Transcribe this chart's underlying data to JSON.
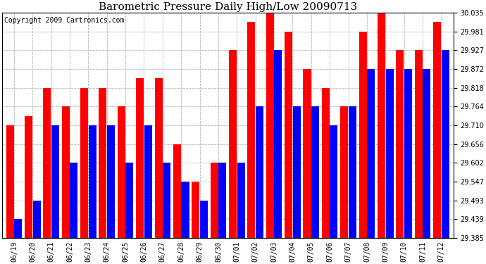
{
  "title": "Barometric Pressure Daily High/Low 20090713",
  "copyright": "Copyright 2009 Cartronics.com",
  "dates": [
    "06/19",
    "06/20",
    "06/21",
    "06/22",
    "06/23",
    "06/24",
    "06/25",
    "06/26",
    "06/27",
    "06/28",
    "06/29",
    "06/30",
    "07/01",
    "07/02",
    "07/03",
    "07/04",
    "07/05",
    "07/06",
    "07/07",
    "07/08",
    "07/09",
    "07/10",
    "07/11",
    "07/12"
  ],
  "highs": [
    29.71,
    29.737,
    29.818,
    29.764,
    29.818,
    29.818,
    29.764,
    29.845,
    29.845,
    29.656,
    29.547,
    29.602,
    29.927,
    30.008,
    30.035,
    29.981,
    29.872,
    29.818,
    29.764,
    29.981,
    30.035,
    29.927,
    29.927,
    30.008
  ],
  "lows": [
    29.439,
    29.493,
    29.71,
    29.602,
    29.71,
    29.71,
    29.602,
    29.71,
    29.602,
    29.547,
    29.493,
    29.602,
    29.602,
    29.764,
    29.927,
    29.764,
    29.764,
    29.71,
    29.764,
    29.872,
    29.872,
    29.872,
    29.872,
    29.927
  ],
  "ymin": 29.385,
  "ymax": 30.035,
  "yticks": [
    29.385,
    29.439,
    29.493,
    29.547,
    29.602,
    29.656,
    29.71,
    29.764,
    29.818,
    29.872,
    29.927,
    29.981,
    30.035
  ],
  "high_color": "#ff0000",
  "low_color": "#0000ff",
  "bg_color": "#ffffff",
  "grid_color": "#aaaaaa",
  "title_fontsize": 11,
  "tick_fontsize": 7,
  "copyright_fontsize": 7
}
